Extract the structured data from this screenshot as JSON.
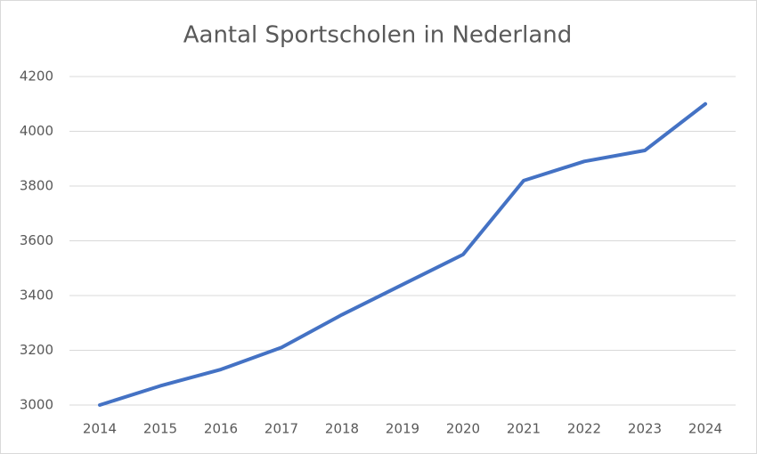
{
  "chart_data": {
    "type": "line",
    "title": "Aantal Sportscholen in Nederland",
    "categories": [
      "2014",
      "2015",
      "2016",
      "2017",
      "2018",
      "2019",
      "2020",
      "2021",
      "2022",
      "2023",
      "2024"
    ],
    "values": [
      3000,
      3070,
      3130,
      3210,
      3330,
      3440,
      3550,
      3820,
      3890,
      3930,
      4100
    ],
    "color": "#4472c4",
    "ylim": [
      3000,
      4200
    ],
    "yticks": [
      3000,
      3200,
      3400,
      3600,
      3800,
      4000,
      4200
    ],
    "grid": true
  }
}
